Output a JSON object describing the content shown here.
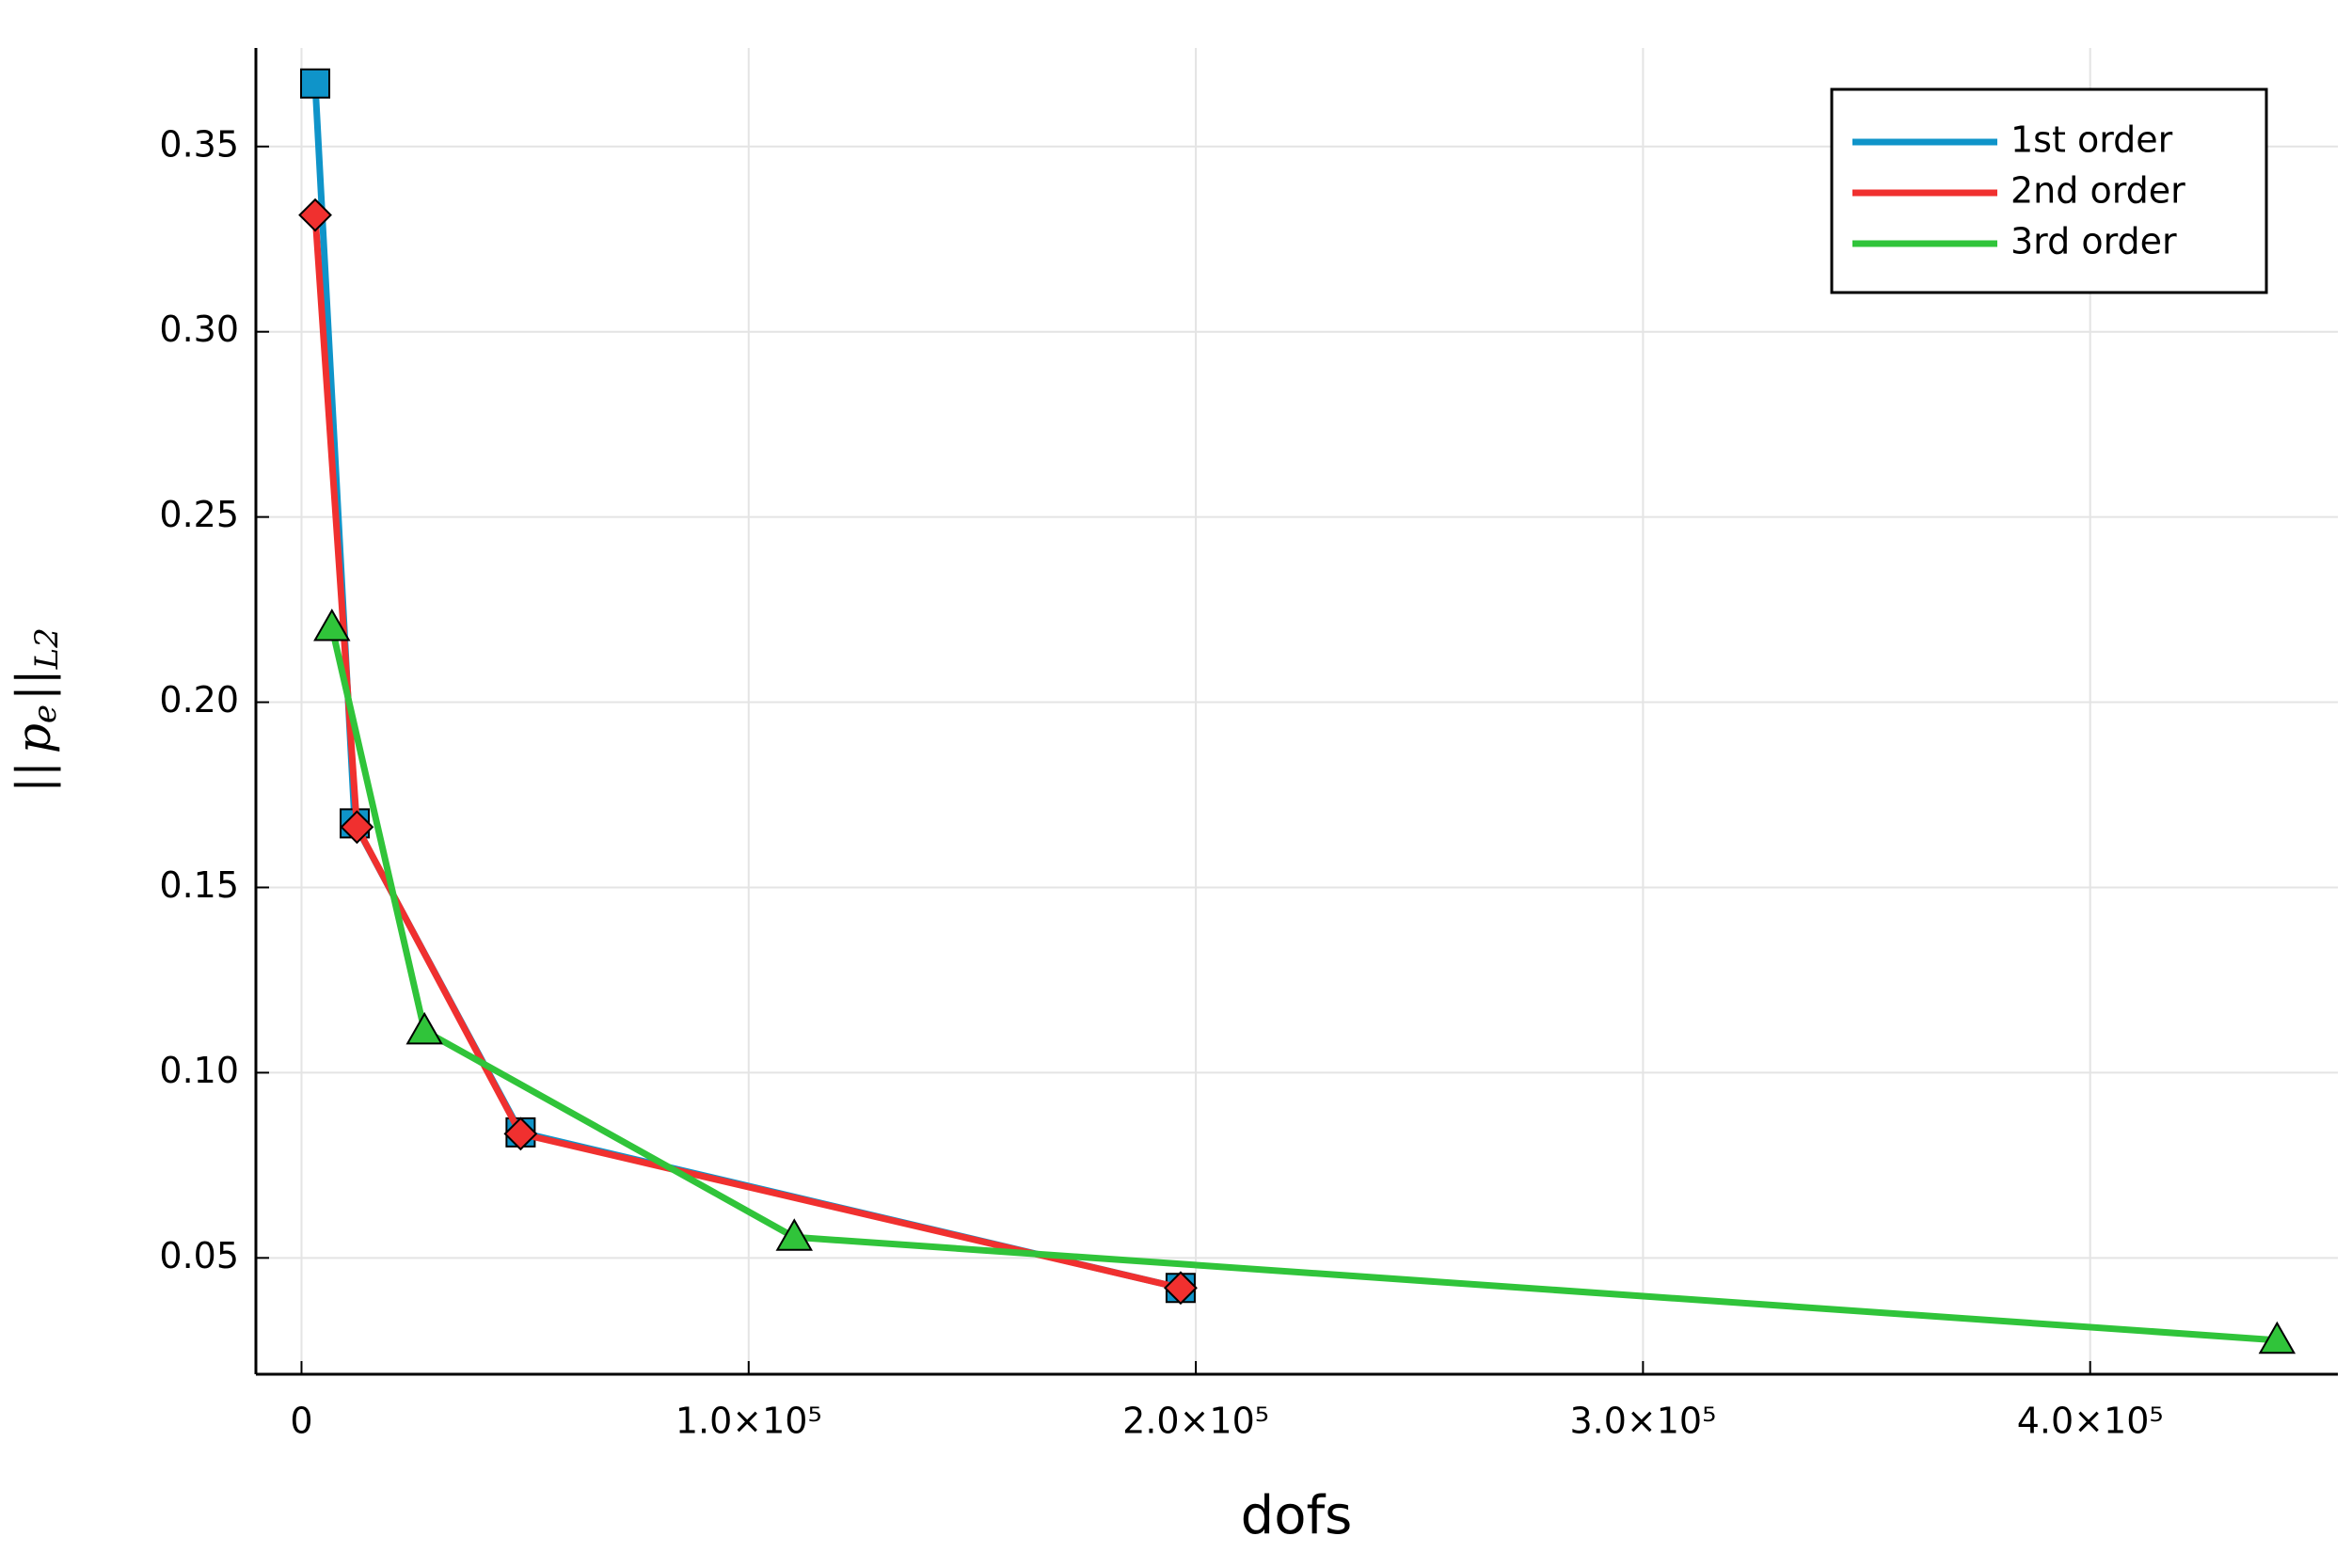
{
  "chart_data": {
    "type": "line",
    "xlabel": "dofs",
    "ylabel": [
      "||",
      "p",
      "e",
      "||",
      "L2"
    ],
    "xlim": [
      -10200,
      455400
    ],
    "ylim": [
      0.0186,
      0.3766
    ],
    "xticks": [
      0,
      {
        "value": 100000,
        "label": "1.0×10⁵"
      },
      {
        "value": 200000,
        "label": "2.0×10⁵"
      },
      {
        "value": 300000,
        "label": "3.0×10⁵"
      },
      {
        "value": 400000,
        "label": "4.0×10⁵"
      }
    ],
    "yticks": [
      0.05,
      {
        "value": 0.1,
        "label": "0.10"
      },
      0.15,
      {
        "value": 0.2,
        "label": "0.20"
      },
      0.25,
      {
        "value": 0.3,
        "label": "0.30"
      },
      0.35
    ],
    "grid": true,
    "legend": "top-right",
    "series": [
      {
        "name": "1st order",
        "color": "#0f94c9",
        "marker": "square",
        "x": [
          3060,
          11900,
          49000,
          196600
        ],
        "values": [
          0.367,
          0.1673,
          0.0839,
          0.0419
        ]
      },
      {
        "name": "2nd order",
        "color": "#f0302f",
        "marker": "diamond",
        "x": [
          3060,
          12400,
          49000,
          196600
        ],
        "values": [
          0.3315,
          0.1663,
          0.0835,
          0.0419
        ]
      },
      {
        "name": "3rd order",
        "color": "#30c43a",
        "marker": "triangle",
        "x": [
          6800,
          27500,
          110200,
          441800
        ],
        "values": [
          0.2202,
          0.1113,
          0.0556,
          0.0278
        ]
      }
    ]
  }
}
